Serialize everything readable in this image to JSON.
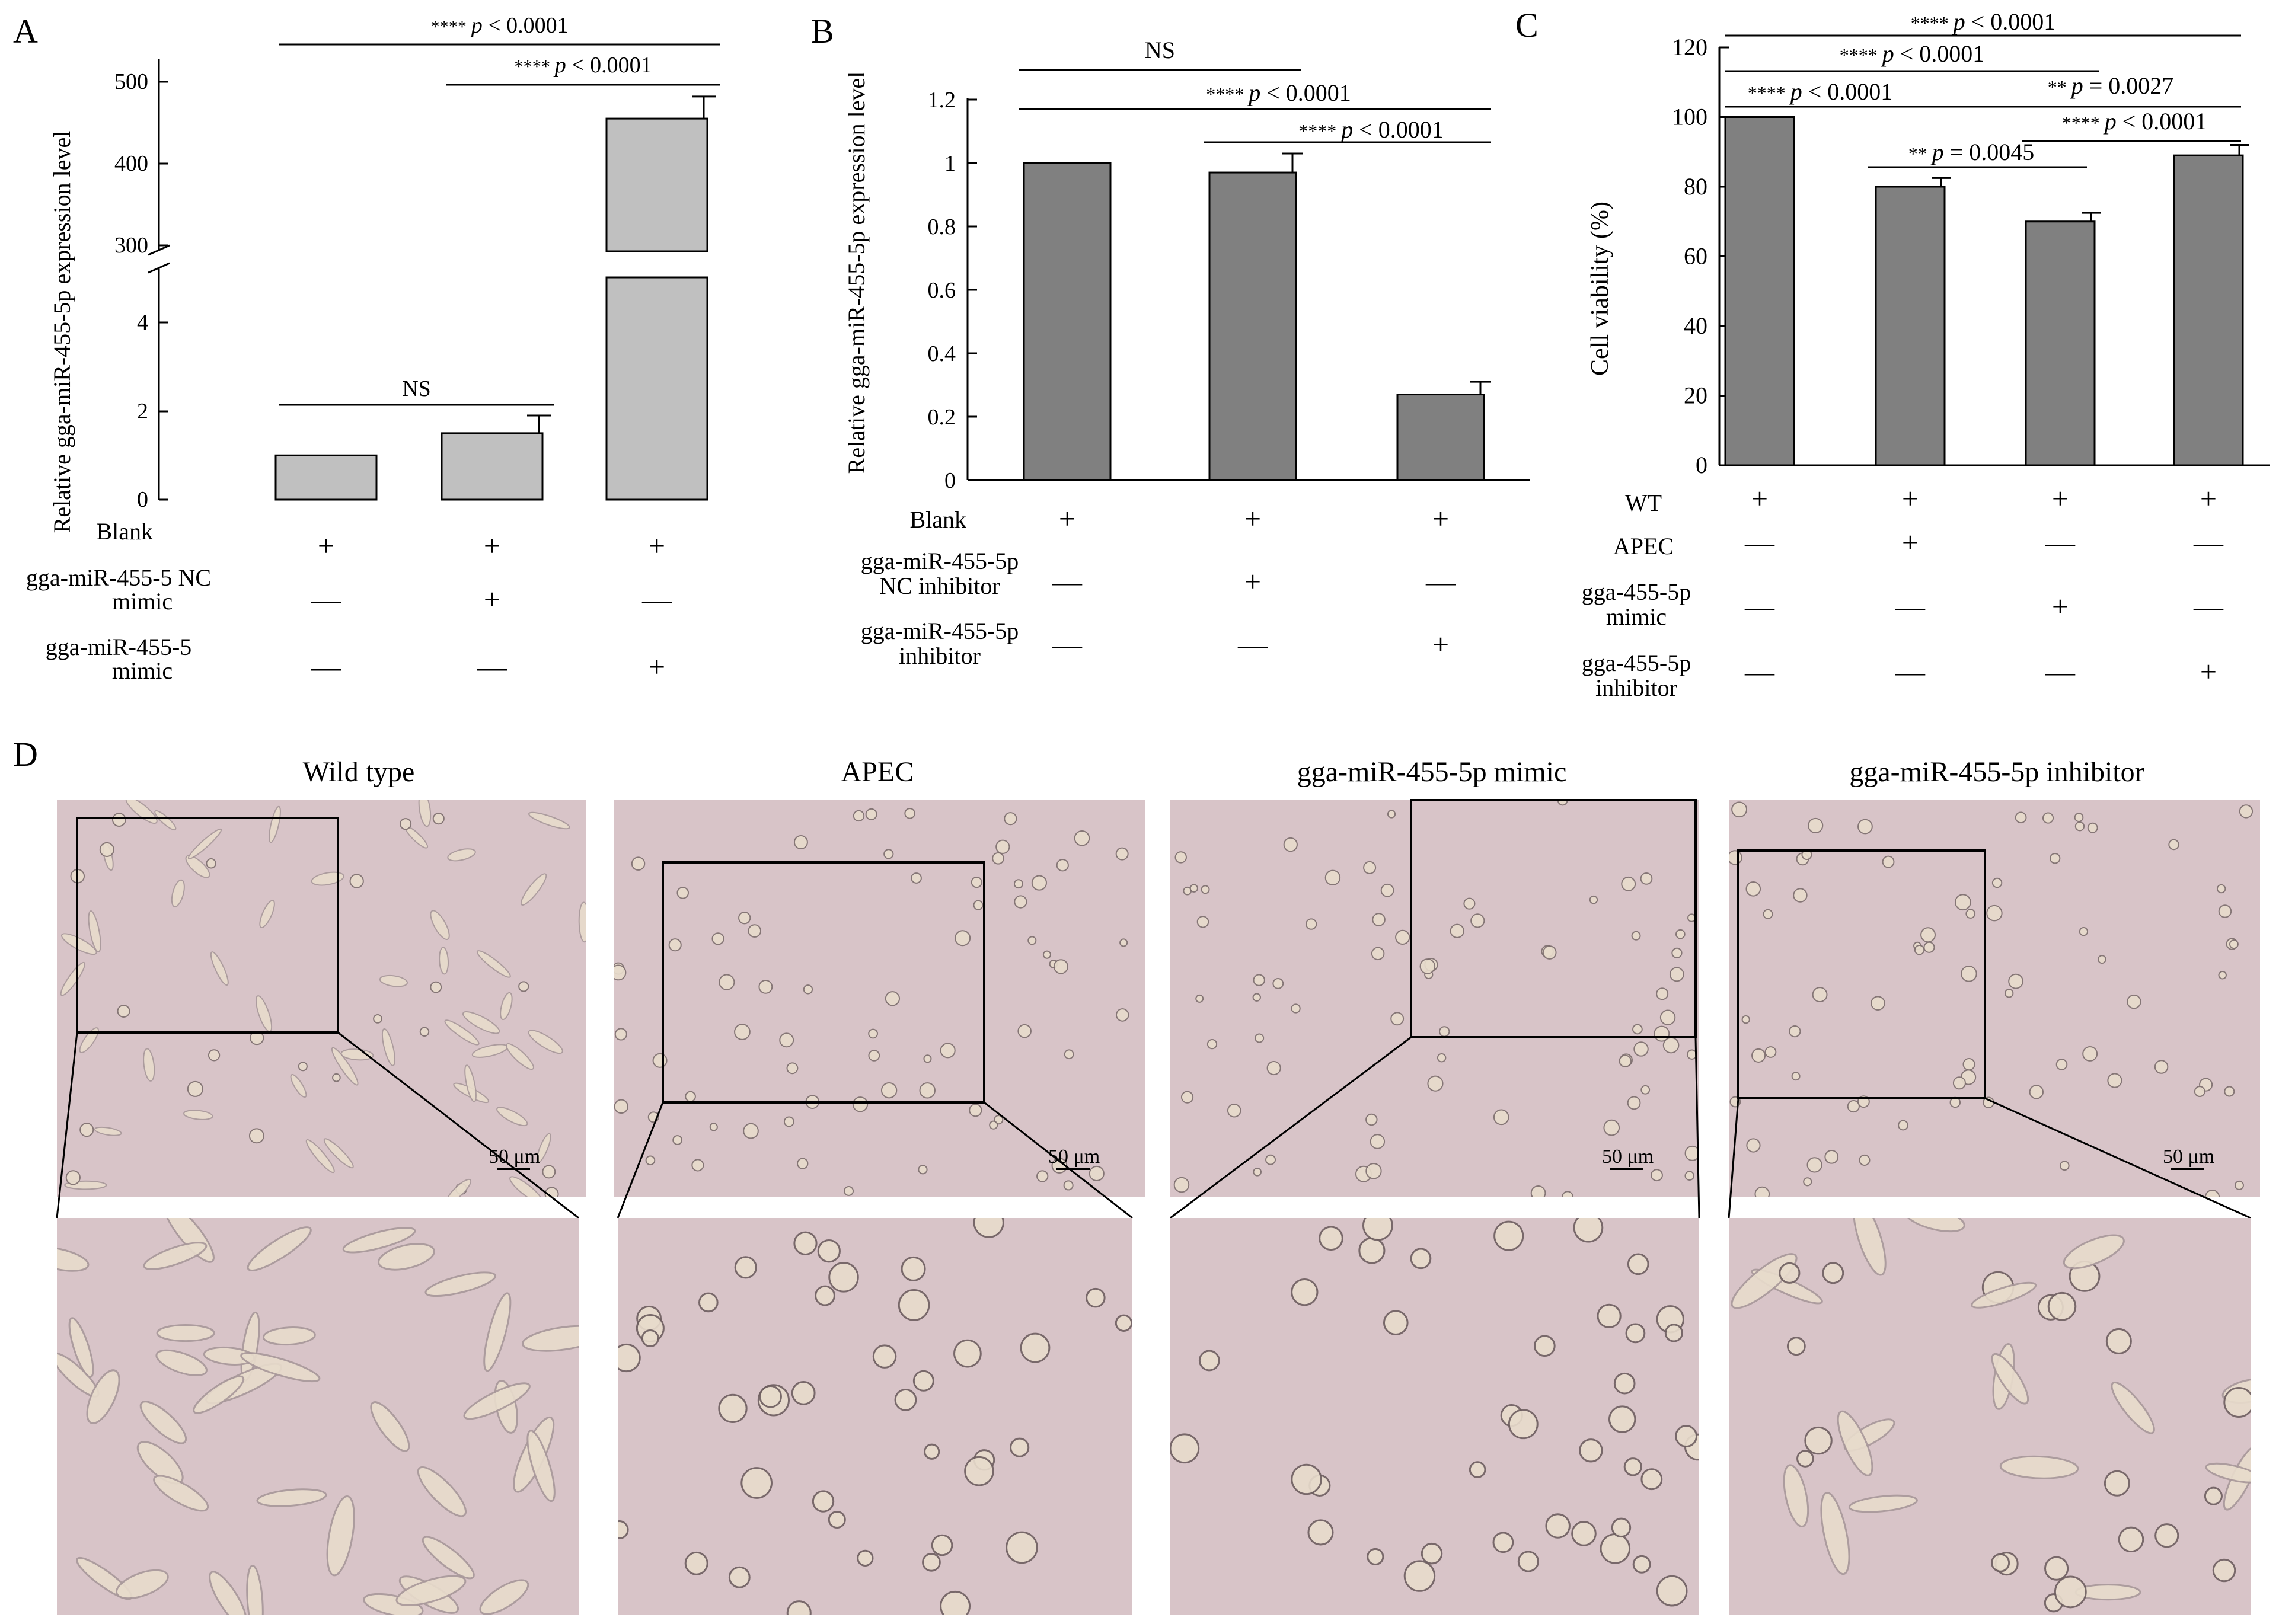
{
  "panel_letters": [
    "A",
    "B",
    "C",
    "D"
  ],
  "chart_data": [
    {
      "panel": "A",
      "type": "bar",
      "ylabel": "Relative gga-miR-455-5p expression level",
      "axis_break": {
        "lower_ticks": [
          "0",
          "2",
          "4"
        ],
        "upper_ticks": [
          "300",
          "400",
          "500"
        ]
      },
      "bar_color": "#c0c0c0",
      "categories": [
        "group1",
        "group2",
        "group3"
      ],
      "values": [
        1,
        1.5,
        455
      ],
      "errors": [
        0,
        0.4,
        27
      ],
      "treatment_rows": [
        {
          "label": "Blank",
          "marks": [
            "+",
            "+",
            "+"
          ]
        },
        {
          "label": "gga-miR-455-5 NC mimic",
          "marks": [
            "—",
            "+",
            "—"
          ]
        },
        {
          "label": "gga-miR-455-5 mimic",
          "marks": [
            "—",
            "—",
            "+"
          ]
        }
      ],
      "comparisons": [
        {
          "stars": "****",
          "p": "p",
          "text": " < 0.0001",
          "from": 0,
          "to": 2
        },
        {
          "stars": "****",
          "p": "p",
          "text": " < 0.0001",
          "from": 1,
          "to": 2
        },
        {
          "stars": "",
          "p": "",
          "text": "NS",
          "from": 0,
          "to": 1
        }
      ]
    },
    {
      "panel": "B",
      "type": "bar",
      "ylabel": "Relative gga-miR-455-5p expression level",
      "ylim": [
        0,
        1.2
      ],
      "yticks": [
        "0",
        "0.2",
        "0.4",
        "0.6",
        "0.8",
        "1",
        "1.2"
      ],
      "bar_color": "#808080",
      "categories": [
        "group1",
        "group2",
        "group3"
      ],
      "values": [
        1.0,
        0.97,
        0.27
      ],
      "errors": [
        0,
        0.06,
        0.04
      ],
      "treatment_rows": [
        {
          "label": "Blank",
          "marks": [
            "+",
            "+",
            "+"
          ]
        },
        {
          "label": "gga-miR-455-5p NC inhibitor",
          "marks": [
            "—",
            "+",
            "—"
          ]
        },
        {
          "label": "gga-miR-455-5p inhibitor",
          "marks": [
            "—",
            "—",
            "+"
          ]
        }
      ],
      "comparisons": [
        {
          "stars": "",
          "p": "",
          "text": "NS",
          "from": 0,
          "to": 1
        },
        {
          "stars": "****",
          "p": "p",
          "text": " < 0.0001",
          "from": 0,
          "to": 2
        },
        {
          "stars": "****",
          "p": "p",
          "text": " < 0.0001",
          "from": 1,
          "to": 2
        }
      ]
    },
    {
      "panel": "C",
      "type": "bar",
      "ylabel": "Cell viability (%)",
      "ylim": [
        0,
        120
      ],
      "yticks": [
        "0",
        "20",
        "40",
        "60",
        "80",
        "100",
        "120"
      ],
      "bar_color": "#808080",
      "categories": [
        "group1",
        "group2",
        "group3",
        "group4"
      ],
      "values": [
        100,
        80,
        70,
        89
      ],
      "errors": [
        0,
        2.5,
        2.5,
        3
      ],
      "treatment_rows": [
        {
          "label": "WT",
          "marks": [
            "+",
            "+",
            "+",
            "+"
          ]
        },
        {
          "label": "APEC",
          "marks": [
            "—",
            "+",
            "—",
            "—"
          ]
        },
        {
          "label": "gga-455-5p mimic",
          "marks": [
            "—",
            "—",
            "+",
            "—"
          ]
        },
        {
          "label": "gga-455-5p inhibitor",
          "marks": [
            "—",
            "—",
            "—",
            "+"
          ]
        }
      ],
      "comparisons": [
        {
          "stars": "****",
          "p": "p",
          "text": " < 0.0001",
          "from": 0,
          "to": 3
        },
        {
          "stars": "****",
          "p": "p",
          "text": " < 0.0001",
          "from": 0,
          "to": 2
        },
        {
          "stars": "**",
          "p": "p",
          "text": " = 0.0027",
          "from": 1,
          "to": 3
        },
        {
          "stars": "****",
          "p": "p",
          "text": " < 0.0001",
          "from": 0,
          "to": 1
        },
        {
          "stars": "****",
          "p": "p",
          "text": " < 0.0001",
          "from": 2,
          "to": 3
        },
        {
          "stars": "**",
          "p": "p",
          "text": " = 0.0045",
          "from": 1,
          "to": 2
        }
      ]
    }
  ],
  "micrographs": {
    "titles": [
      "Wild type",
      "APEC",
      "gga-miR-455-5p mimic",
      "gga-miR-455-5p inhibitor"
    ],
    "scale_bar_label": "50 μm",
    "background_color": "#d8c4c8",
    "cell_color": "#e8dccc"
  }
}
